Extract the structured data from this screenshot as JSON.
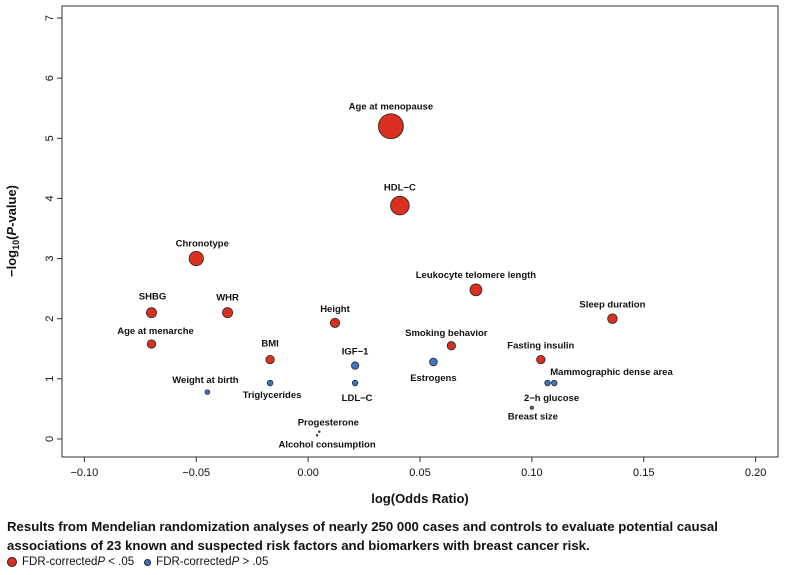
{
  "chart_data": {
    "type": "scatter",
    "xlabel": "log(Odds Ratio)",
    "ylabel_parts": [
      "−log",
      "10",
      "(",
      "P",
      "-value)"
    ],
    "xlim": [
      -0.11,
      0.21
    ],
    "ylim": [
      -0.3,
      7.2
    ],
    "xticks": [
      -0.1,
      -0.05,
      0.0,
      0.05,
      0.1,
      0.15,
      0.2
    ],
    "xtick_labels": [
      "−0.10",
      "−0.05",
      "0.00",
      "0.05",
      "0.10",
      "0.15",
      "0.20"
    ],
    "yticks": [
      0,
      1,
      2,
      3,
      4,
      5,
      6,
      7
    ],
    "ytick_labels": [
      "0",
      "1",
      "2",
      "3",
      "4",
      "5",
      "6",
      "7"
    ],
    "points": [
      {
        "label": "Age at menopause",
        "x": 0.037,
        "y": 5.2,
        "sig": true
      },
      {
        "label": "HDL−C",
        "x": 0.041,
        "y": 3.88,
        "sig": true
      },
      {
        "label": "Chronotype",
        "x": -0.05,
        "y": 3.0,
        "sig": true
      },
      {
        "label": "Leukocyte telomere length",
        "x": 0.075,
        "y": 2.48,
        "sig": true
      },
      {
        "label": "SHBG",
        "x": -0.07,
        "y": 2.1,
        "sig": true
      },
      {
        "label": "WHR",
        "x": -0.036,
        "y": 2.1,
        "sig": true
      },
      {
        "label": "Sleep duration",
        "x": 0.136,
        "y": 2.0,
        "sig": true
      },
      {
        "label": "Height",
        "x": 0.012,
        "y": 1.93,
        "sig": true
      },
      {
        "label": "Age at menarche",
        "x": -0.07,
        "y": 1.58,
        "sig": true
      },
      {
        "label": "Smoking behavior",
        "x": 0.064,
        "y": 1.55,
        "sig": true
      },
      {
        "label": "BMI",
        "x": -0.017,
        "y": 1.32,
        "sig": true
      },
      {
        "label": "Fasting insulin",
        "x": 0.104,
        "y": 1.32,
        "sig": true
      },
      {
        "label": "IGF−1",
        "x": 0.021,
        "y": 1.22,
        "sig": false
      },
      {
        "label": "Estrogens",
        "x": 0.056,
        "y": 1.28,
        "sig": false
      },
      {
        "label": "Mammographic dense area",
        "x": 0.11,
        "y": 0.93,
        "sig": false
      },
      {
        "label": "2−h glucose",
        "x": 0.107,
        "y": 0.93,
        "sig": false
      },
      {
        "label": "Triglycerides",
        "x": -0.017,
        "y": 0.93,
        "sig": false
      },
      {
        "label": "LDL−C",
        "x": 0.021,
        "y": 0.93,
        "sig": false
      },
      {
        "label": "Weight at birth",
        "x": -0.045,
        "y": 0.78,
        "sig": false
      },
      {
        "label": "Breast size",
        "x": 0.1,
        "y": 0.52,
        "sig": false
      },
      {
        "label": "Progesterone",
        "x": 0.005,
        "y": 0.12,
        "sig": false
      },
      {
        "label": "Alcohol consumption",
        "x": 0.004,
        "y": 0.06,
        "sig": false
      }
    ],
    "caption": "Results from Mendelian randomization analyses of nearly 250 000 cases and controls to evaluate potential causal associations of 23 known and suspected risk factors and biomarkers with breast cancer risk.",
    "legend": [
      {
        "label_prefix": "FDR-corrected ",
        "label_italic": "P",
        "label_suffix": " < .05",
        "color": "#d9301f"
      },
      {
        "label_prefix": "FDR-corrected ",
        "label_italic": "P",
        "label_suffix": " > .05",
        "color": "#3b74c8"
      }
    ],
    "colors": {
      "significant": "#d9301f",
      "nonsignificant": "#3b74c8"
    }
  }
}
